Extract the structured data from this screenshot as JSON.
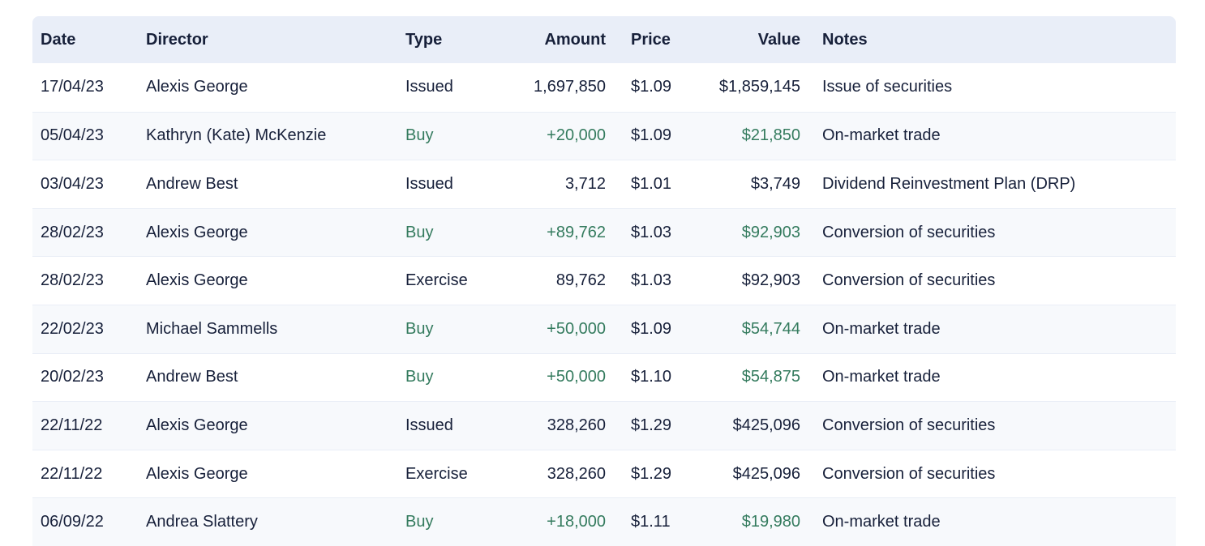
{
  "colors": {
    "header_bg": "#e9eef8",
    "alt_row_bg": "#f7f9fc",
    "text": "#17203a",
    "accent_green": "#347b5e",
    "row_border": "#e9eef6",
    "page_bg": "#ffffff"
  },
  "table": {
    "columns": [
      {
        "key": "date",
        "label": "Date",
        "align": "left"
      },
      {
        "key": "director",
        "label": "Director",
        "align": "left"
      },
      {
        "key": "type",
        "label": "Type",
        "align": "left"
      },
      {
        "key": "amount",
        "label": "Amount",
        "align": "right"
      },
      {
        "key": "price",
        "label": "Price",
        "align": "left"
      },
      {
        "key": "value",
        "label": "Value",
        "align": "right"
      },
      {
        "key": "notes",
        "label": "Notes",
        "align": "left"
      }
    ],
    "rows": [
      {
        "date": "17/04/23",
        "director": "Alexis George",
        "type": "Issued",
        "amount": "1,697,850",
        "price": "$1.09",
        "value": "$1,859,145",
        "notes": "Issue of securities",
        "buy": false
      },
      {
        "date": "05/04/23",
        "director": "Kathryn (Kate) McKenzie",
        "type": "Buy",
        "amount": "+20,000",
        "price": "$1.09",
        "value": "$21,850",
        "notes": "On-market trade",
        "buy": true
      },
      {
        "date": "03/04/23",
        "director": "Andrew Best",
        "type": "Issued",
        "amount": "3,712",
        "price": "$1.01",
        "value": "$3,749",
        "notes": "Dividend Reinvestment Plan (DRP)",
        "buy": false
      },
      {
        "date": "28/02/23",
        "director": "Alexis George",
        "type": "Buy",
        "amount": "+89,762",
        "price": "$1.03",
        "value": "$92,903",
        "notes": "Conversion of securities",
        "buy": true
      },
      {
        "date": "28/02/23",
        "director": "Alexis George",
        "type": "Exercise",
        "amount": "89,762",
        "price": "$1.03",
        "value": "$92,903",
        "notes": "Conversion of securities",
        "buy": false
      },
      {
        "date": "22/02/23",
        "director": "Michael Sammells",
        "type": "Buy",
        "amount": "+50,000",
        "price": "$1.09",
        "value": "$54,744",
        "notes": "On-market trade",
        "buy": true
      },
      {
        "date": "20/02/23",
        "director": "Andrew Best",
        "type": "Buy",
        "amount": "+50,000",
        "price": "$1.10",
        "value": "$54,875",
        "notes": "On-market trade",
        "buy": true
      },
      {
        "date": "22/11/22",
        "director": "Alexis George",
        "type": "Issued",
        "amount": "328,260",
        "price": "$1.29",
        "value": "$425,096",
        "notes": "Conversion of securities",
        "buy": false
      },
      {
        "date": "22/11/22",
        "director": "Alexis George",
        "type": "Exercise",
        "amount": "328,260",
        "price": "$1.29",
        "value": "$425,096",
        "notes": "Conversion of securities",
        "buy": false
      },
      {
        "date": "06/09/22",
        "director": "Andrea Slattery",
        "type": "Buy",
        "amount": "+18,000",
        "price": "$1.11",
        "value": "$19,980",
        "notes": "On-market trade",
        "buy": true
      }
    ]
  }
}
